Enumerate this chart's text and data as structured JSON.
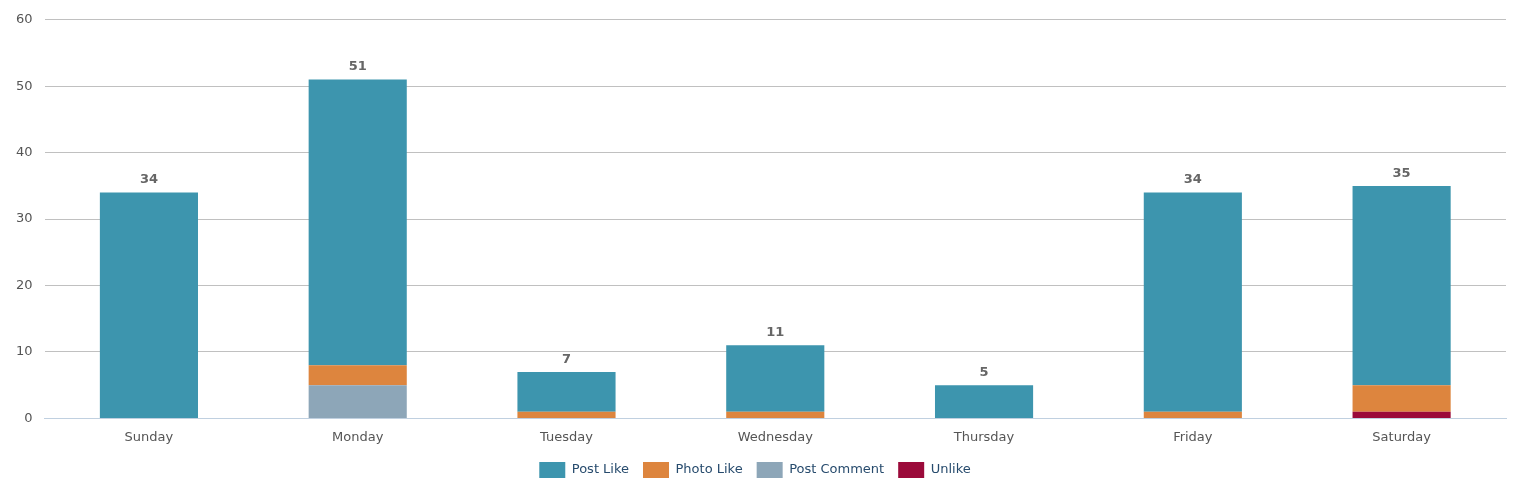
{
  "chart_data": {
    "type": "bar",
    "stacked": true,
    "categories": [
      "Sunday",
      "Monday",
      "Tuesday",
      "Wednesday",
      "Thursday",
      "Friday",
      "Saturday"
    ],
    "series": [
      {
        "name": "Unlike",
        "color": "#9b0a3a",
        "values": [
          0,
          0,
          0,
          0,
          0,
          0,
          1
        ]
      },
      {
        "name": "Post Comment",
        "color": "#8da6b8",
        "values": [
          0,
          5,
          0,
          0,
          0,
          0,
          0
        ]
      },
      {
        "name": "Photo Like",
        "color": "#dd853e",
        "values": [
          0,
          3,
          1,
          1,
          0,
          1,
          4
        ]
      },
      {
        "name": "Post Like",
        "color": "#3d95ae",
        "values": [
          34,
          43,
          6,
          10,
          5,
          33,
          30
        ]
      }
    ],
    "totals": [
      "34",
      "51",
      "7",
      "11",
      "5",
      "34",
      "35"
    ],
    "ylim": [
      0,
      60
    ],
    "yticks": [
      0,
      10,
      20,
      30,
      40,
      50,
      60
    ],
    "grid": "y",
    "legend": "bottom"
  }
}
